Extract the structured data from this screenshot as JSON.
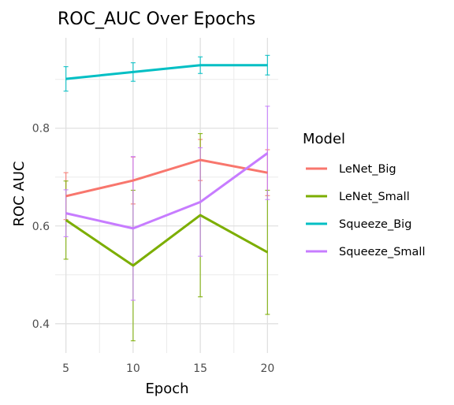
{
  "chart_data": {
    "type": "line",
    "title": "ROC_AUC Over Epochs",
    "xlabel": "Epoch",
    "ylabel": "ROC AUC",
    "x": [
      5,
      10,
      15,
      20
    ],
    "xlim": [
      4.2,
      20.8
    ],
    "ylim": [
      0.34,
      0.985
    ],
    "xticks": [
      5,
      10,
      15,
      20
    ],
    "yticks": [
      0.4,
      0.6,
      0.8
    ],
    "grid": true,
    "legend_title": "Model",
    "legend_position": "right",
    "series": [
      {
        "name": "LeNet_Big",
        "color": "#F8766D",
        "values": [
          0.661,
          0.693,
          0.735,
          0.709
        ],
        "err_low": [
          0.613,
          0.645,
          0.693,
          0.662
        ],
        "err_high": [
          0.709,
          0.741,
          0.777,
          0.756
        ]
      },
      {
        "name": "LeNet_Small",
        "color": "#7CAE00",
        "values": [
          0.612,
          0.519,
          0.622,
          0.546
        ],
        "err_low": [
          0.532,
          0.365,
          0.455,
          0.419
        ],
        "err_high": [
          0.692,
          0.673,
          0.789,
          0.673
        ]
      },
      {
        "name": "Squeeze_Big",
        "color": "#00BFC4",
        "values": [
          0.901,
          0.915,
          0.929,
          0.929
        ],
        "err_low": [
          0.876,
          0.896,
          0.912,
          0.909
        ],
        "err_high": [
          0.926,
          0.934,
          0.946,
          0.949
        ]
      },
      {
        "name": "Squeeze_Small",
        "color": "#C77CFF",
        "values": [
          0.626,
          0.595,
          0.649,
          0.749
        ],
        "err_low": [
          0.578,
          0.448,
          0.538,
          0.654
        ],
        "err_high": [
          0.674,
          0.742,
          0.76,
          0.845
        ]
      }
    ]
  }
}
